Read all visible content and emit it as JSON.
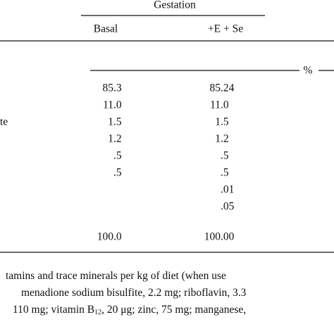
{
  "table": {
    "group_header": "Gestation",
    "columns": [
      "Basal",
      "+E + Se"
    ],
    "unit": "%",
    "rows": [
      {
        "values": [
          "85.3",
          "85.24"
        ]
      },
      {
        "values": [
          "11.0",
          "11.0"
        ]
      },
      {
        "label": "te",
        "values": [
          "1.5",
          "1.5"
        ]
      },
      {
        "values": [
          "1.2",
          "1.2"
        ]
      },
      {
        "values": [
          ".5",
          ".5"
        ]
      },
      {
        "values": [
          ".5",
          ".5"
        ]
      },
      {
        "values": [
          null,
          ".01"
        ]
      },
      {
        "values": [
          null,
          ".05"
        ]
      }
    ],
    "total": [
      "100.0",
      "100.00"
    ]
  },
  "footnote": {
    "lines": [
      [
        "tamins and trace minerals per kg of diet (when use"
      ],
      [
        "menadione sodium bisulfite, 2.2 mg; riboflavin, 3.3"
      ],
      [
        "110 mg; vitamin B",
        "12",
        ", 20 μg; zinc, 75 mg; manganese,"
      ]
    ]
  }
}
